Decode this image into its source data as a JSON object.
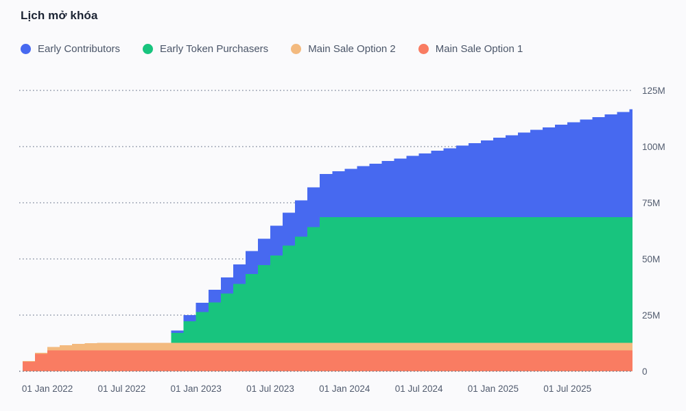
{
  "header": {
    "title": "Lịch mở khóa"
  },
  "legend": [
    {
      "label": "Early Contributors",
      "color": "#4769F0"
    },
    {
      "label": "Early Token Purchasers",
      "color": "#18C47E"
    },
    {
      "label": "Main Sale Option 2",
      "color": "#F3BA7F"
    },
    {
      "label": "Main Sale Option 1",
      "color": "#F97C62"
    }
  ],
  "colors": {
    "background": "#FAFAFC",
    "title_text": "#1B2333",
    "legend_text": "#4A5568",
    "axis_text": "#515B6E",
    "gridline": "#8C95A6"
  },
  "chart_data": {
    "type": "area",
    "variant": "stacked-step",
    "title": "Lịch mở khóa",
    "unit": "tokens (millions)",
    "ylim": [
      0,
      125
    ],
    "grid": "dotted-horizontal",
    "legend_position": "top-left",
    "y_ticks": [
      {
        "value": 0,
        "label": "0"
      },
      {
        "value": 25,
        "label": "25M"
      },
      {
        "value": 50,
        "label": "50M"
      },
      {
        "value": 75,
        "label": "75M"
      },
      {
        "value": 100,
        "label": "100M"
      },
      {
        "value": 125,
        "label": "125M"
      }
    ],
    "x_months": [
      "Nov 2021",
      "Dec 2021",
      "Jan 2022",
      "Feb 2022",
      "Mar 2022",
      "Apr 2022",
      "May 2022",
      "Jun 2022",
      "Jul 2022",
      "Aug 2022",
      "Sep 2022",
      "Oct 2022",
      "Nov 2022",
      "Dec 2022",
      "Jan 2023",
      "Feb 2023",
      "Mar 2023",
      "Apr 2023",
      "May 2023",
      "Jun 2023",
      "Jul 2023",
      "Aug 2023",
      "Sep 2023",
      "Oct 2023",
      "Nov 2023",
      "Dec 2023",
      "Jan 2024",
      "Feb 2024",
      "Mar 2024",
      "Apr 2024",
      "May 2024",
      "Jun 2024",
      "Jul 2024",
      "Aug 2024",
      "Sep 2024",
      "Oct 2024",
      "Nov 2024",
      "Dec 2024",
      "Jan 2025",
      "Feb 2025",
      "Mar 2025",
      "Apr 2025",
      "May 2025",
      "Jun 2025",
      "Jul 2025",
      "Aug 2025",
      "Sep 2025",
      "Oct 2025",
      "Nov 2025",
      "Dec 2025"
    ],
    "x_ticks": [
      {
        "month_index": 2,
        "label": "01 Jan 2022"
      },
      {
        "month_index": 8,
        "label": "01 Jul 2022"
      },
      {
        "month_index": 14,
        "label": "01 Jan 2023"
      },
      {
        "month_index": 20,
        "label": "01 Jul 2023"
      },
      {
        "month_index": 26,
        "label": "01 Jan 2024"
      },
      {
        "month_index": 32,
        "label": "01 Jul 2024"
      },
      {
        "month_index": 38,
        "label": "01 Jan 2025"
      },
      {
        "month_index": 44,
        "label": "01 Jul 2025"
      }
    ],
    "series_bottom_to_top": [
      {
        "name": "Main Sale Option 1",
        "color": "#F97C62",
        "values": [
          4.3,
          7.7,
          9.3,
          9.3,
          9.3,
          9.3,
          9.3,
          9.3,
          9.3,
          9.3,
          9.3,
          9.3,
          9.3,
          9.3,
          9.3,
          9.3,
          9.3,
          9.3,
          9.3,
          9.3,
          9.3,
          9.3,
          9.3,
          9.3,
          9.3,
          9.3,
          9.3,
          9.3,
          9.3,
          9.3,
          9.3,
          9.3,
          9.3,
          9.3,
          9.3,
          9.3,
          9.3,
          9.3,
          9.3,
          9.3,
          9.3,
          9.3,
          9.3,
          9.3,
          9.3,
          9.3,
          9.3,
          9.3,
          9.3,
          9.3
        ]
      },
      {
        "name": "Main Sale Option 2",
        "color": "#F3BA7F",
        "values": [
          0.3,
          0.6,
          1.5,
          2.3,
          2.9,
          3.2,
          3.4,
          3.4,
          3.4,
          3.4,
          3.4,
          3.4,
          3.4,
          3.4,
          3.4,
          3.4,
          3.4,
          3.4,
          3.4,
          3.4,
          3.4,
          3.4,
          3.4,
          3.4,
          3.4,
          3.4,
          3.4,
          3.4,
          3.4,
          3.4,
          3.4,
          3.4,
          3.4,
          3.4,
          3.4,
          3.4,
          3.4,
          3.4,
          3.4,
          3.4,
          3.4,
          3.4,
          3.4,
          3.4,
          3.4,
          3.4,
          3.4,
          3.4,
          3.4,
          3.4
        ]
      },
      {
        "name": "Early Token Purchasers",
        "color": "#18C47E",
        "values": [
          0,
          0,
          0,
          0,
          0,
          0,
          0,
          0,
          0,
          0,
          0,
          0,
          4.3,
          9.6,
          13.6,
          17.9,
          21.9,
          26.2,
          30.6,
          34.6,
          38.9,
          43.2,
          47.2,
          51.5,
          55.9,
          55.9,
          55.9,
          55.9,
          55.9,
          55.9,
          55.9,
          55.9,
          55.9,
          55.9,
          55.9,
          55.9,
          55.9,
          55.9,
          55.9,
          55.9,
          55.9,
          55.9,
          55.9,
          55.9,
          55.9,
          55.9,
          55.9,
          55.9,
          55.9,
          55.9
        ]
      },
      {
        "name": "Early Contributors",
        "color": "#4769F0",
        "values": [
          0,
          0,
          0,
          0,
          0,
          0,
          0,
          0,
          0,
          0,
          0,
          0,
          1.2,
          2.7,
          4.2,
          5.7,
          7.2,
          8.7,
          10.2,
          11.7,
          13.2,
          14.7,
          16.2,
          17.7,
          19.2,
          20.4,
          21.5,
          22.7,
          23.8,
          25.0,
          26.1,
          27.3,
          28.4,
          29.6,
          30.7,
          31.9,
          33.0,
          34.2,
          35.3,
          36.5,
          37.6,
          38.8,
          39.9,
          41.1,
          42.2,
          43.4,
          44.5,
          45.7,
          46.8,
          48.0
        ]
      }
    ]
  }
}
